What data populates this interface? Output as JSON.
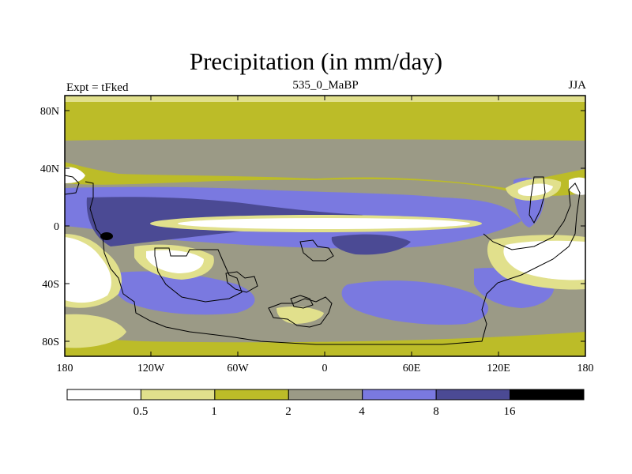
{
  "title": "Precipitation (in mm/day)",
  "subtitle_left": "Expt = tFked",
  "subtitle_center": "535_0_MaBP",
  "subtitle_right": "JJA",
  "y_ticks": [
    "80N",
    "40N",
    "0",
    "40S",
    "80S"
  ],
  "x_ticks": [
    "180",
    "120W",
    "60W",
    "0",
    "60E",
    "120E",
    "180"
  ],
  "colorbar": {
    "labels": [
      "0.5",
      "1",
      "2",
      "4",
      "8",
      "16"
    ],
    "colors": [
      "#ffffff",
      "#e1e08c",
      "#bcbc28",
      "#9b9a86",
      "#7a79e0",
      "#4b4a94",
      "#000000"
    ]
  },
  "palette": {
    "white": "#ffffff",
    "light_yellow": "#e1e08c",
    "olive": "#bcbc28",
    "grey": "#9b9a86",
    "periwinkle": "#7a79e0",
    "navy": "#4b4a94",
    "black": "#000000"
  }
}
